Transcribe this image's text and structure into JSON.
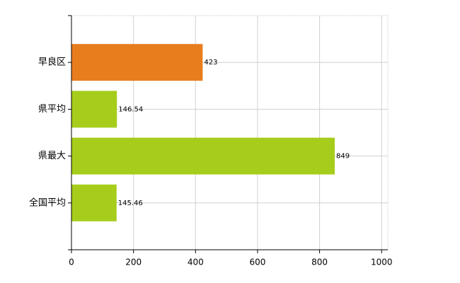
{
  "chart_data": {
    "type": "barh",
    "categories": [
      "早良区",
      "県平均",
      "県最大",
      "全国平均"
    ],
    "values": [
      423,
      146.54,
      849,
      145.46
    ],
    "colors": [
      "#e87d1e",
      "#a6cd1b",
      "#a6cd1b",
      "#a6cd1b"
    ],
    "xlim": [
      0,
      1020
    ],
    "xticks": [
      0,
      200,
      400,
      600,
      800,
      1000
    ],
    "grid": true
  }
}
